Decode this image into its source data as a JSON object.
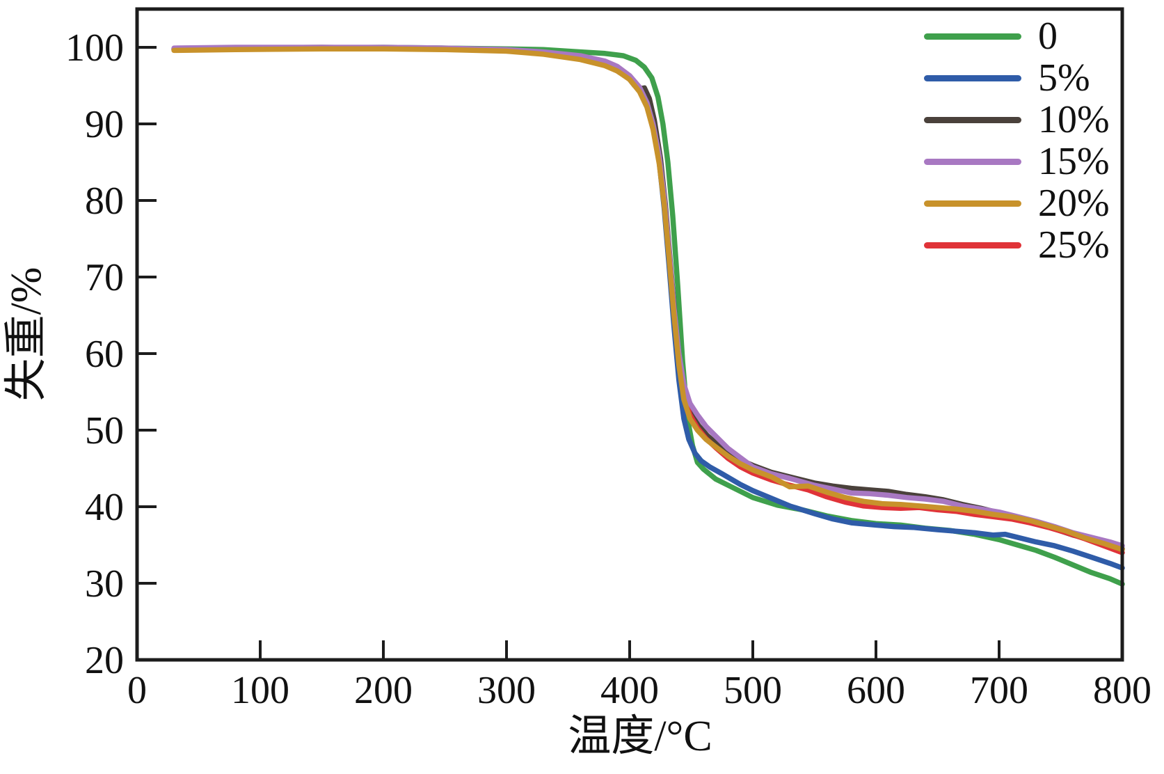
{
  "figure": {
    "background": "#ffffff",
    "axis_color": "#1c1c1c",
    "text_color": "#111111"
  },
  "chart_data": {
    "type": "line",
    "title": "",
    "xlabel": "温度/°C",
    "ylabel": "失重/%",
    "xlim": [
      0,
      800
    ],
    "ylim": [
      20,
      105
    ],
    "x_ticks": [
      0,
      100,
      200,
      300,
      400,
      500,
      600,
      700,
      800
    ],
    "y_ticks": [
      20,
      30,
      40,
      50,
      60,
      70,
      80,
      90,
      100
    ],
    "grid": false,
    "legend_position": "top-right",
    "series": [
      {
        "name": "0",
        "color": "#3FA04C",
        "points": [
          [
            30,
            99.8
          ],
          [
            80,
            99.9
          ],
          [
            150,
            99.9
          ],
          [
            200,
            100
          ],
          [
            250,
            99.9
          ],
          [
            300,
            99.8
          ],
          [
            330,
            99.7
          ],
          [
            360,
            99.4
          ],
          [
            380,
            99.2
          ],
          [
            395,
            98.9
          ],
          [
            405,
            98.3
          ],
          [
            412,
            97.4
          ],
          [
            418,
            96
          ],
          [
            423,
            93.5
          ],
          [
            427,
            90
          ],
          [
            431,
            85
          ],
          [
            435,
            78
          ],
          [
            439,
            69
          ],
          [
            443,
            59
          ],
          [
            447,
            51.5
          ],
          [
            451,
            48
          ],
          [
            455,
            45.8
          ],
          [
            460,
            44.9
          ],
          [
            470,
            43.6
          ],
          [
            480,
            42.8
          ],
          [
            500,
            41.2
          ],
          [
            520,
            40.2
          ],
          [
            540,
            39.6
          ],
          [
            560,
            38.8
          ],
          [
            580,
            38.2
          ],
          [
            600,
            37.8
          ],
          [
            620,
            37.6
          ],
          [
            640,
            37.2
          ],
          [
            660,
            36.9
          ],
          [
            680,
            36.4
          ],
          [
            700,
            35.7
          ],
          [
            715,
            35
          ],
          [
            730,
            34.3
          ],
          [
            745,
            33.4
          ],
          [
            760,
            32.4
          ],
          [
            775,
            31.4
          ],
          [
            790,
            30.6
          ],
          [
            800,
            29.9
          ]
        ]
      },
      {
        "name": "5%",
        "color": "#2F5CA8",
        "points": [
          [
            30,
            99.7
          ],
          [
            80,
            99.8
          ],
          [
            150,
            99.8
          ],
          [
            200,
            99.9
          ],
          [
            250,
            99.8
          ],
          [
            300,
            99.6
          ],
          [
            330,
            99.2
          ],
          [
            360,
            98.6
          ],
          [
            380,
            97.9
          ],
          [
            390,
            97.3
          ],
          [
            400,
            96.2
          ],
          [
            408,
            94.6
          ],
          [
            414,
            92.4
          ],
          [
            419,
            89.5
          ],
          [
            424,
            85
          ],
          [
            428,
            79
          ],
          [
            432,
            71.5
          ],
          [
            436,
            63.5
          ],
          [
            440,
            56.5
          ],
          [
            444,
            51.5
          ],
          [
            448,
            48.8
          ],
          [
            453,
            47
          ],
          [
            458,
            46
          ],
          [
            465,
            45.2
          ],
          [
            475,
            44.3
          ],
          [
            490,
            42.9
          ],
          [
            500,
            42.1
          ],
          [
            515,
            41.1
          ],
          [
            530,
            40.1
          ],
          [
            550,
            39.1
          ],
          [
            565,
            38.4
          ],
          [
            580,
            37.9
          ],
          [
            600,
            37.6
          ],
          [
            615,
            37.4
          ],
          [
            630,
            37.3
          ],
          [
            650,
            37
          ],
          [
            665,
            36.8
          ],
          [
            680,
            36.6
          ],
          [
            695,
            36.3
          ],
          [
            705,
            36.4
          ],
          [
            715,
            36
          ],
          [
            730,
            35.4
          ],
          [
            745,
            34.9
          ],
          [
            760,
            34.2
          ],
          [
            775,
            33.4
          ],
          [
            790,
            32.6
          ],
          [
            800,
            32
          ]
        ]
      },
      {
        "name": "10%",
        "color": "#4A413B",
        "points": [
          [
            30,
            99.8
          ],
          [
            80,
            99.9
          ],
          [
            150,
            100
          ],
          [
            200,
            99.9
          ],
          [
            250,
            99.8
          ],
          [
            300,
            99.7
          ],
          [
            330,
            99.3
          ],
          [
            360,
            98.8
          ],
          [
            380,
            98
          ],
          [
            390,
            97.2
          ],
          [
            398,
            96.2
          ],
          [
            404,
            95
          ],
          [
            408,
            94.6
          ],
          [
            412,
            94.7
          ],
          [
            416,
            93.3
          ],
          [
            420,
            90.5
          ],
          [
            425,
            85.5
          ],
          [
            429,
            79.5
          ],
          [
            433,
            72
          ],
          [
            437,
            64.5
          ],
          [
            441,
            58.5
          ],
          [
            445,
            54.5
          ],
          [
            450,
            52
          ],
          [
            456,
            50.6
          ],
          [
            463,
            49.3
          ],
          [
            470,
            48.3
          ],
          [
            480,
            47
          ],
          [
            490,
            46.1
          ],
          [
            500,
            45.4
          ],
          [
            515,
            44.5
          ],
          [
            530,
            43.9
          ],
          [
            550,
            43.1
          ],
          [
            565,
            42.7
          ],
          [
            580,
            42.4
          ],
          [
            595,
            42.2
          ],
          [
            610,
            42
          ],
          [
            625,
            41.6
          ],
          [
            640,
            41.3
          ],
          [
            655,
            40.9
          ],
          [
            670,
            40.3
          ],
          [
            685,
            39.8
          ],
          [
            700,
            39.2
          ],
          [
            715,
            38.6
          ],
          [
            730,
            37.9
          ],
          [
            745,
            37.1
          ],
          [
            760,
            36.3
          ],
          [
            775,
            35.7
          ],
          [
            790,
            35
          ],
          [
            800,
            34.5
          ]
        ]
      },
      {
        "name": "15%",
        "color": "#A878C2",
        "points": [
          [
            30,
            99.9
          ],
          [
            80,
            100
          ],
          [
            150,
            100
          ],
          [
            200,
            100
          ],
          [
            250,
            99.9
          ],
          [
            300,
            99.7
          ],
          [
            330,
            99.4
          ],
          [
            360,
            98.9
          ],
          [
            380,
            98.2
          ],
          [
            390,
            97.5
          ],
          [
            400,
            96.3
          ],
          [
            408,
            94.8
          ],
          [
            414,
            92.8
          ],
          [
            419,
            90
          ],
          [
            424,
            85.8
          ],
          [
            428,
            80.5
          ],
          [
            432,
            73.5
          ],
          [
            436,
            66
          ],
          [
            440,
            60
          ],
          [
            444,
            56
          ],
          [
            449,
            53.5
          ],
          [
            455,
            52
          ],
          [
            462,
            50.5
          ],
          [
            470,
            49.2
          ],
          [
            480,
            47.6
          ],
          [
            490,
            46.4
          ],
          [
            500,
            45.2
          ],
          [
            515,
            44.3
          ],
          [
            530,
            43.7
          ],
          [
            550,
            42.8
          ],
          [
            565,
            42.3
          ],
          [
            580,
            41.8
          ],
          [
            595,
            41.7
          ],
          [
            610,
            41.5
          ],
          [
            625,
            41.2
          ],
          [
            640,
            41
          ],
          [
            655,
            40.7
          ],
          [
            670,
            40.1
          ],
          [
            685,
            39.7
          ],
          [
            700,
            39.3
          ],
          [
            715,
            38.7
          ],
          [
            730,
            38.1
          ],
          [
            745,
            37.4
          ],
          [
            760,
            36.6
          ],
          [
            775,
            36
          ],
          [
            790,
            35.4
          ],
          [
            800,
            34.9
          ]
        ]
      },
      {
        "name": "20%",
        "color": "#C8922B",
        "points": [
          [
            30,
            99.6
          ],
          [
            80,
            99.7
          ],
          [
            150,
            99.8
          ],
          [
            200,
            99.8
          ],
          [
            250,
            99.7
          ],
          [
            300,
            99.5
          ],
          [
            330,
            99.1
          ],
          [
            360,
            98.4
          ],
          [
            380,
            97.6
          ],
          [
            390,
            96.9
          ],
          [
            400,
            95.8
          ],
          [
            408,
            94.2
          ],
          [
            414,
            92.2
          ],
          [
            419,
            89.3
          ],
          [
            424,
            84.8
          ],
          [
            428,
            79.5
          ],
          [
            432,
            72.5
          ],
          [
            436,
            65
          ],
          [
            440,
            58.5
          ],
          [
            444,
            54
          ],
          [
            449,
            51.5
          ],
          [
            455,
            50
          ],
          [
            462,
            48.8
          ],
          [
            470,
            47.8
          ],
          [
            480,
            46.6
          ],
          [
            490,
            45.6
          ],
          [
            500,
            44.8
          ],
          [
            515,
            43.9
          ],
          [
            530,
            42.6
          ],
          [
            545,
            42.7
          ],
          [
            560,
            41.9
          ],
          [
            575,
            41.2
          ],
          [
            590,
            40.7
          ],
          [
            605,
            40.4
          ],
          [
            620,
            40.3
          ],
          [
            635,
            40.1
          ],
          [
            650,
            39.9
          ],
          [
            665,
            39.7
          ],
          [
            680,
            39.4
          ],
          [
            695,
            39
          ],
          [
            710,
            38.7
          ],
          [
            725,
            38.2
          ],
          [
            740,
            37.5
          ],
          [
            755,
            36.8
          ],
          [
            770,
            35.9
          ],
          [
            785,
            35.2
          ],
          [
            800,
            34.4
          ]
        ]
      },
      {
        "name": "25%",
        "color": "#E03338",
        "points": [
          [
            30,
            99.7
          ],
          [
            80,
            99.8
          ],
          [
            150,
            99.9
          ],
          [
            200,
            99.9
          ],
          [
            250,
            99.8
          ],
          [
            300,
            99.6
          ],
          [
            330,
            99.2
          ],
          [
            360,
            98.5
          ],
          [
            380,
            97.7
          ],
          [
            390,
            97
          ],
          [
            400,
            95.9
          ],
          [
            408,
            94.4
          ],
          [
            414,
            92.5
          ],
          [
            419,
            89.8
          ],
          [
            424,
            85.5
          ],
          [
            428,
            80
          ],
          [
            432,
            73
          ],
          [
            436,
            65.5
          ],
          [
            440,
            59
          ],
          [
            444,
            54.5
          ],
          [
            449,
            52
          ],
          [
            455,
            50.3
          ],
          [
            462,
            48.9
          ],
          [
            470,
            47.7
          ],
          [
            480,
            46.3
          ],
          [
            490,
            45.2
          ],
          [
            500,
            44.4
          ],
          [
            515,
            43.5
          ],
          [
            530,
            42.8
          ],
          [
            545,
            42.2
          ],
          [
            560,
            41.3
          ],
          [
            575,
            40.6
          ],
          [
            590,
            40.1
          ],
          [
            605,
            39.9
          ],
          [
            620,
            39.8
          ],
          [
            635,
            39.9
          ],
          [
            650,
            39.6
          ],
          [
            665,
            39.4
          ],
          [
            680,
            39
          ],
          [
            695,
            38.7
          ],
          [
            710,
            38.4
          ],
          [
            725,
            37.9
          ],
          [
            740,
            37.3
          ],
          [
            755,
            36.6
          ],
          [
            770,
            35.8
          ],
          [
            785,
            34.9
          ],
          [
            800,
            34
          ]
        ]
      }
    ]
  }
}
